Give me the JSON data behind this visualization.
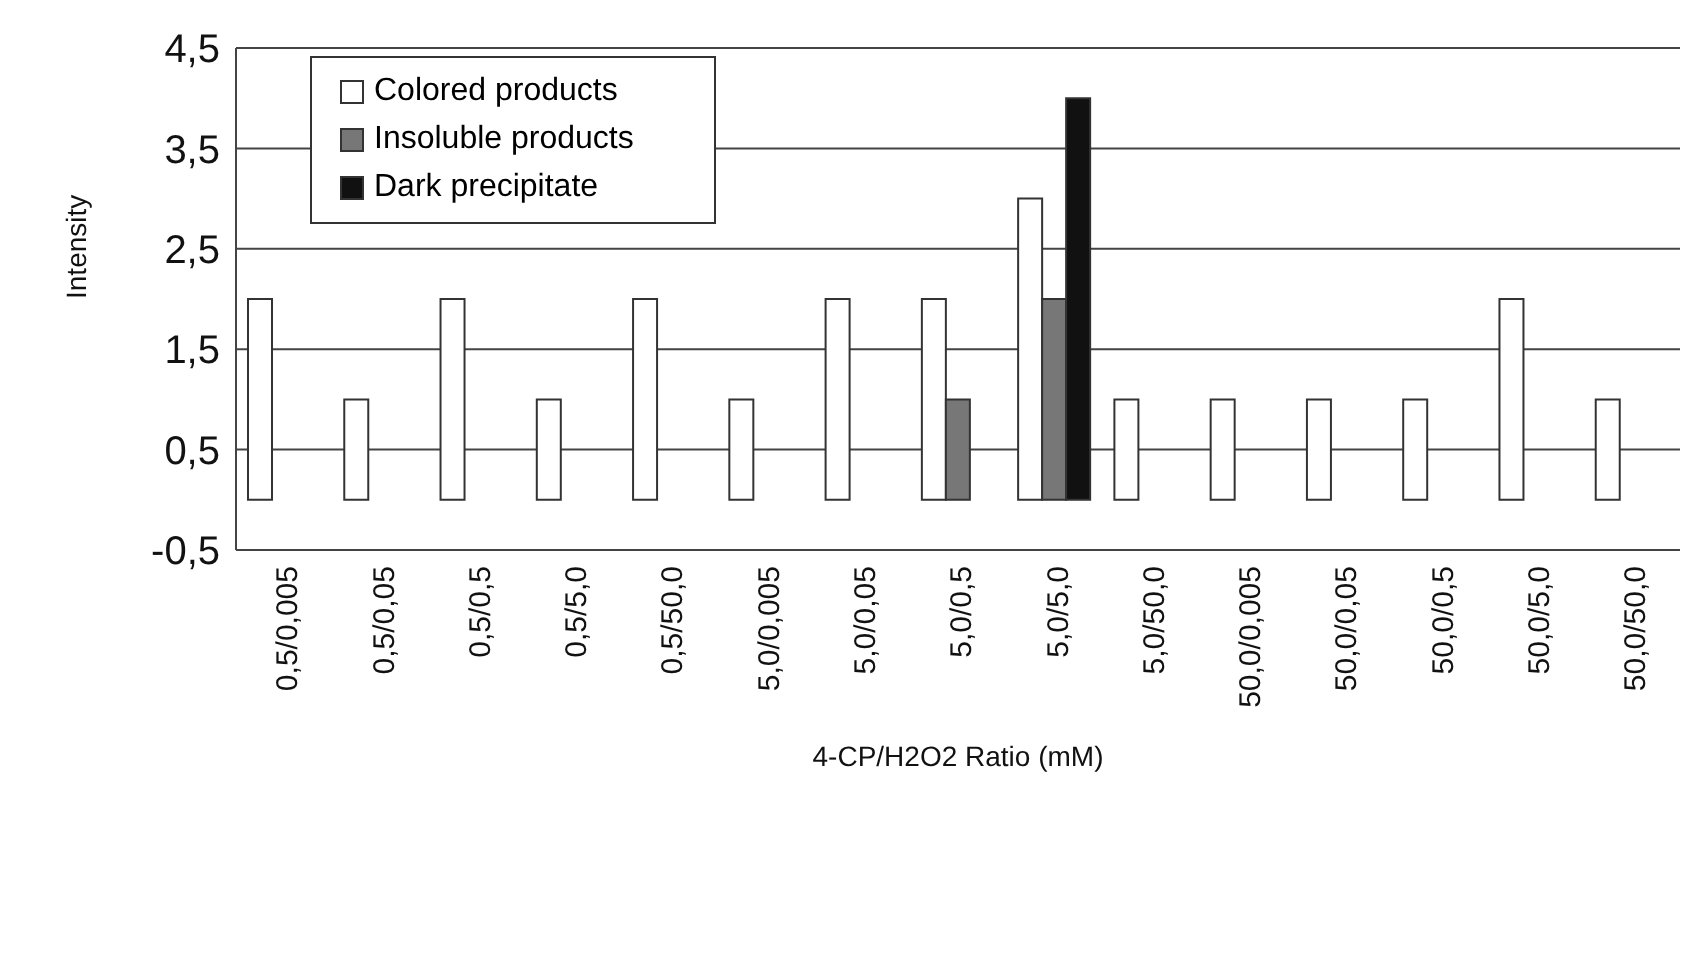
{
  "chart_data": {
    "type": "bar",
    "xlabel": "4-CP/H2O2 Ratio (mM)",
    "ylabel": "Intensity",
    "categories": [
      "0,5/0,005",
      "0,5/0,05",
      "0,5/0,5",
      "0,5/5,0",
      "0,5/50,0",
      "5,0/0,005",
      "5,0/0,05",
      "5,0/0,5",
      "5,0/5,0",
      "5,0/50,0",
      "50,0/0,005",
      "50,0/0,05",
      "50,0/0,5",
      "50,0/5,0",
      "50,0/50,0"
    ],
    "series": [
      {
        "name": "Colored products",
        "color": "#ffffff",
        "values": [
          2,
          1,
          2,
          1,
          2,
          1,
          2,
          2,
          3,
          1,
          1,
          1,
          1,
          2,
          1
        ]
      },
      {
        "name": "Insoluble products",
        "color": "#777777",
        "values": [
          null,
          null,
          null,
          null,
          null,
          null,
          null,
          1,
          2,
          null,
          null,
          null,
          null,
          null,
          null
        ]
      },
      {
        "name": "Dark precipitate",
        "color": "#111111",
        "values": [
          null,
          null,
          null,
          null,
          null,
          null,
          null,
          null,
          4,
          null,
          null,
          null,
          null,
          null,
          null
        ]
      }
    ],
    "ylim": [
      -0.5,
      4.5
    ],
    "yticks": [
      {
        "value": -0.5,
        "label": "-0,5"
      },
      {
        "value": 0.5,
        "label": "0,5"
      },
      {
        "value": 1.5,
        "label": "1,5"
      },
      {
        "value": 2.5,
        "label": "2,5"
      },
      {
        "value": 3.5,
        "label": "3,5"
      },
      {
        "value": 4.5,
        "label": "4,5"
      }
    ],
    "grid": "y",
    "legend": "top left"
  }
}
